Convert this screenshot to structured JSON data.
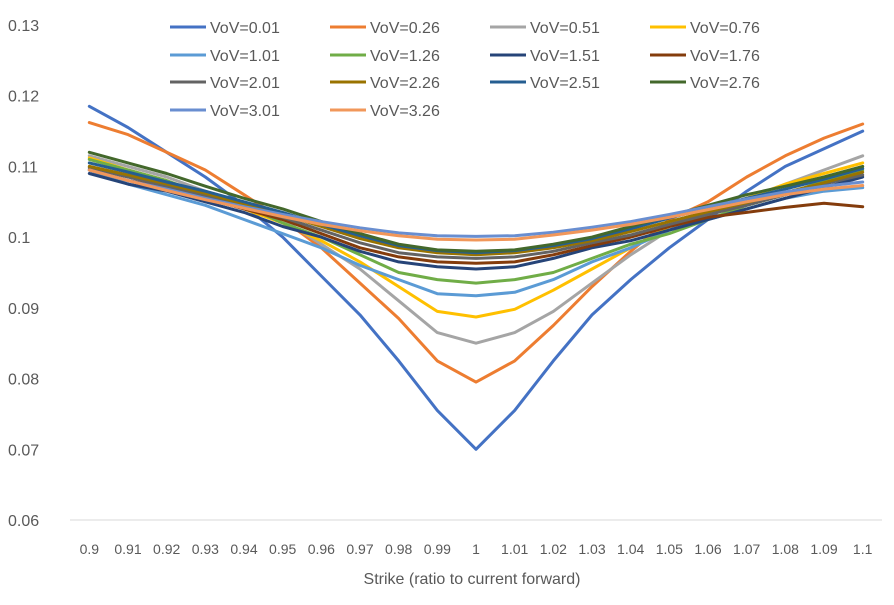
{
  "chart_data": {
    "type": "line",
    "title": "",
    "xlabel": "Strike (ratio to current forward)",
    "ylabel": "",
    "x": [
      0.9,
      0.91,
      0.92,
      0.93,
      0.94,
      0.95,
      0.96,
      0.97,
      0.98,
      0.99,
      1,
      1.01,
      1.02,
      1.03,
      1.04,
      1.05,
      1.06,
      1.07,
      1.08,
      1.09,
      1.1
    ],
    "x_tick_labels": [
      "0.9",
      "0.91",
      "0.92",
      "0.93",
      "0.94",
      "0.95",
      "0.96",
      "0.97",
      "0.98",
      "0.99",
      "1",
      "1.01",
      "1.02",
      "1.03",
      "1.04",
      "1.05",
      "1.06",
      "1.07",
      "1.08",
      "1.09",
      "1.1"
    ],
    "ylim": [
      0.06,
      0.13
    ],
    "y_ticks": [
      0.06,
      0.07,
      0.08,
      0.09,
      0.1,
      0.11,
      0.12,
      0.13
    ],
    "y_tick_labels": [
      "0.06",
      "0.07",
      "0.08",
      "0.09",
      "0.1",
      "0.11",
      "0.12",
      "0.13"
    ],
    "grid": false,
    "legend_position": "top",
    "series": [
      {
        "name": "VoV=0.01",
        "color": "#4472C4",
        "values": [
          0.1185,
          0.1155,
          0.112,
          0.1085,
          0.1045,
          0.1,
          0.0945,
          0.089,
          0.0825,
          0.0755,
          0.07,
          0.0755,
          0.0825,
          0.089,
          0.094,
          0.0985,
          0.1025,
          0.1065,
          0.11,
          0.1125,
          0.115
        ]
      },
      {
        "name": "VoV=0.26",
        "color": "#ED7D31",
        "values": [
          0.1162,
          0.1145,
          0.112,
          0.1095,
          0.106,
          0.1025,
          0.0985,
          0.0935,
          0.0885,
          0.0825,
          0.0795,
          0.0825,
          0.0875,
          0.093,
          0.098,
          0.1025,
          0.105,
          0.1085,
          0.1115,
          0.114,
          0.116
        ]
      },
      {
        "name": "VoV=0.51",
        "color": "#A5A5A5",
        "values": [
          0.1115,
          0.11,
          0.1085,
          0.1065,
          0.1045,
          0.1025,
          0.099,
          0.0955,
          0.091,
          0.0865,
          0.085,
          0.0865,
          0.0895,
          0.0935,
          0.0975,
          0.101,
          0.1035,
          0.1055,
          0.1075,
          0.1095,
          0.1115
        ]
      },
      {
        "name": "VoV=0.76",
        "color": "#FFC000",
        "values": [
          0.1112,
          0.1095,
          0.108,
          0.106,
          0.104,
          0.102,
          0.0995,
          0.0965,
          0.093,
          0.0895,
          0.0887,
          0.0898,
          0.0925,
          0.0955,
          0.0985,
          0.1015,
          0.1035,
          0.1055,
          0.1075,
          0.109,
          0.1105
        ]
      },
      {
        "name": "VoV=1.01",
        "color": "#5B9BD5",
        "values": [
          0.1095,
          0.1075,
          0.106,
          0.1045,
          0.1025,
          0.1005,
          0.0985,
          0.096,
          0.094,
          0.092,
          0.0917,
          0.0922,
          0.094,
          0.0965,
          0.0985,
          0.101,
          0.1025,
          0.104,
          0.1055,
          0.1065,
          0.107
        ]
      },
      {
        "name": "VoV=1.26",
        "color": "#70AD47",
        "values": [
          0.111,
          0.1095,
          0.108,
          0.106,
          0.1045,
          0.102,
          0.1,
          0.0975,
          0.095,
          0.094,
          0.0935,
          0.094,
          0.095,
          0.097,
          0.099,
          0.1005,
          0.1025,
          0.1045,
          0.106,
          0.108,
          0.1095
        ]
      },
      {
        "name": "VoV=1.51",
        "color": "#264478",
        "values": [
          0.109,
          0.1075,
          0.1065,
          0.105,
          0.1035,
          0.1015,
          0.1,
          0.098,
          0.0965,
          0.0958,
          0.0955,
          0.0958,
          0.097,
          0.0985,
          0.0995,
          0.101,
          0.1025,
          0.104,
          0.1055,
          0.107,
          0.1085
        ]
      },
      {
        "name": "VoV=1.76",
        "color": "#843C0C",
        "values": [
          0.1095,
          0.108,
          0.107,
          0.1055,
          0.104,
          0.1025,
          0.1005,
          0.0985,
          0.0972,
          0.0965,
          0.0963,
          0.0965,
          0.0975,
          0.0988,
          0.1,
          0.1015,
          0.1028,
          0.1035,
          0.1042,
          0.1048,
          0.1043
        ]
      },
      {
        "name": "VoV=2.01",
        "color": "#636363",
        "values": [
          0.1098,
          0.1085,
          0.1072,
          0.1058,
          0.1043,
          0.1028,
          0.101,
          0.0992,
          0.0978,
          0.0972,
          0.097,
          0.0972,
          0.098,
          0.0992,
          0.1003,
          0.1018,
          0.1032,
          0.1045,
          0.106,
          0.1075,
          0.1088
        ]
      },
      {
        "name": "VoV=2.26",
        "color": "#997300",
        "values": [
          0.11,
          0.1088,
          0.1075,
          0.1062,
          0.1047,
          0.1032,
          0.1015,
          0.0998,
          0.0985,
          0.0978,
          0.0975,
          0.0978,
          0.0985,
          0.0995,
          0.1008,
          0.1022,
          0.1036,
          0.1049,
          0.1063,
          0.1077,
          0.1092
        ]
      },
      {
        "name": "VoV=2.51",
        "color": "#255E91",
        "values": [
          0.1105,
          0.1092,
          0.1078,
          0.1065,
          0.105,
          0.1035,
          0.1018,
          0.1002,
          0.0988,
          0.0981,
          0.0978,
          0.0981,
          0.0988,
          0.0998,
          0.1012,
          0.1027,
          0.1041,
          0.1055,
          0.1068,
          0.1082,
          0.1097
        ]
      },
      {
        "name": "VoV=2.76",
        "color": "#43682B",
        "values": [
          0.112,
          0.1105,
          0.109,
          0.1072,
          0.1055,
          0.104,
          0.1022,
          0.1005,
          0.099,
          0.0982,
          0.098,
          0.0982,
          0.099,
          0.1,
          0.1015,
          0.103,
          0.1045,
          0.106,
          0.1072,
          0.1085,
          0.11
        ]
      },
      {
        "name": "VoV=3.01",
        "color": "#698ED0",
        "values": [
          0.1095,
          0.108,
          0.1068,
          0.1055,
          0.1043,
          0.1032,
          0.1022,
          0.1013,
          0.1006,
          0.1002,
          0.1001,
          0.1002,
          0.1007,
          0.1014,
          0.1022,
          0.1032,
          0.1043,
          0.1054,
          0.1064,
          0.1072,
          0.1078
        ]
      },
      {
        "name": "VoV=3.26",
        "color": "#F1975A",
        "values": [
          0.1095,
          0.108,
          0.1066,
          0.1053,
          0.1041,
          0.1029,
          0.1018,
          0.1009,
          0.1002,
          0.0997,
          0.0996,
          0.0997,
          0.1003,
          0.101,
          0.1018,
          0.1028,
          0.1039,
          0.105,
          0.106,
          0.1068,
          0.1073
        ]
      }
    ]
  }
}
